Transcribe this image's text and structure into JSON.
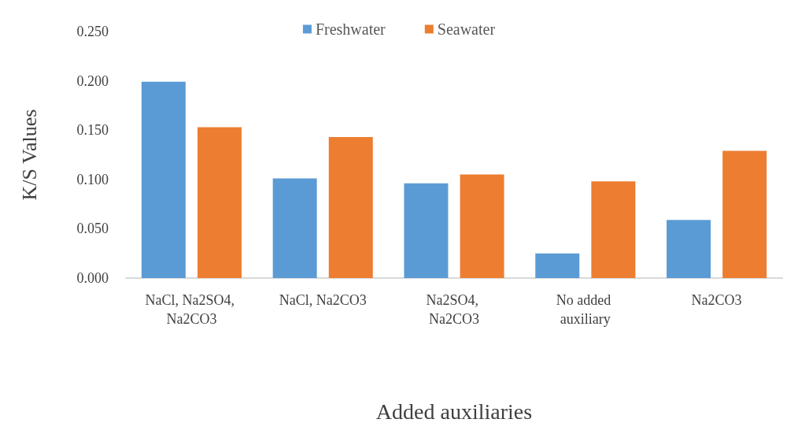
{
  "chart_data": {
    "type": "bar",
    "xlabel": "Added auxiliaries",
    "ylabel": "K/S Values",
    "categories": [
      "NaCl, Na2SO4, Na2CO3",
      "NaCl, Na2CO3",
      "Na2SO4, Na2CO3",
      "No added auxiliary",
      "Na2CO3"
    ],
    "series": [
      {
        "name": "Freshwater",
        "color": "#5b9bd5",
        "values": [
          0.199,
          0.101,
          0.096,
          0.025,
          0.059
        ]
      },
      {
        "name": "Seawater",
        "color": "#ed7d31",
        "values": [
          0.153,
          0.143,
          0.105,
          0.098,
          0.129
        ]
      }
    ],
    "ylim": [
      0,
      0.25
    ],
    "yticks": [
      {
        "value": 0,
        "label": "0.000"
      },
      {
        "value": 0.05,
        "label": "0.050"
      },
      {
        "value": 0.1,
        "label": "0.100"
      },
      {
        "value": 0.15,
        "label": "0.150"
      },
      {
        "value": 0.2,
        "label": "0.200"
      },
      {
        "value": 0.25,
        "label": "0.250"
      }
    ],
    "grid": false,
    "legend": "top"
  }
}
